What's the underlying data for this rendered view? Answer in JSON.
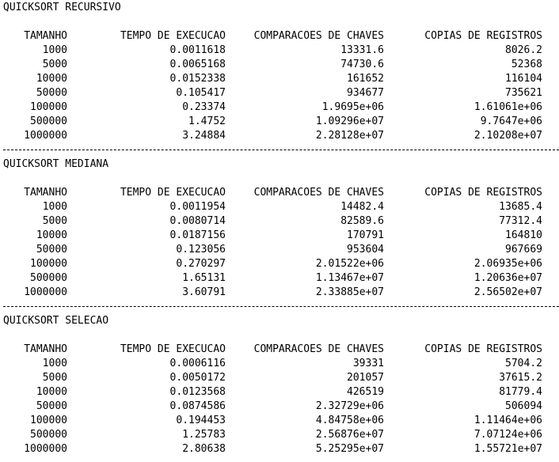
{
  "headers": [
    "TAMANHO",
    "TEMPO DE EXECUCAO",
    "COMPARACOES DE CHAVES",
    "COPIAS DE REGISTROS"
  ],
  "sections": [
    {
      "title": "QUICKSORT RECURSIVO",
      "rows": [
        [
          "1000",
          "0.0011618",
          "13331.6",
          "8026.2"
        ],
        [
          "5000",
          "0.0065168",
          "74730.6",
          "52368"
        ],
        [
          "10000",
          "0.0152338",
          "161652",
          "116104"
        ],
        [
          "50000",
          "0.105417",
          "934677",
          "735621"
        ],
        [
          "100000",
          "0.23374",
          "1.9695e+06",
          "1.61061e+06"
        ],
        [
          "500000",
          "1.4752",
          "1.09296e+07",
          "9.7647e+06"
        ],
        [
          "1000000",
          "3.24884",
          "2.28128e+07",
          "2.10208e+07"
        ]
      ]
    },
    {
      "title": "QUICKSORT MEDIANA",
      "rows": [
        [
          "1000",
          "0.0011954",
          "14482.4",
          "13685.4"
        ],
        [
          "5000",
          "0.0080714",
          "82589.6",
          "77312.4"
        ],
        [
          "10000",
          "0.0187156",
          "170791",
          "164810"
        ],
        [
          "50000",
          "0.123056",
          "953604",
          "967669"
        ],
        [
          "100000",
          "0.270297",
          "2.01522e+06",
          "2.06935e+06"
        ],
        [
          "500000",
          "1.65131",
          "1.13467e+07",
          "1.20636e+07"
        ],
        [
          "1000000",
          "3.60791",
          "2.33885e+07",
          "2.56502e+07"
        ]
      ]
    },
    {
      "title": "QUICKSORT SELECAO",
      "rows": [
        [
          "1000",
          "0.0006116",
          "39331",
          "5704.2"
        ],
        [
          "5000",
          "0.0050172",
          "201057",
          "37615.2"
        ],
        [
          "10000",
          "0.0123568",
          "426519",
          "81779.4"
        ],
        [
          "50000",
          "0.0874586",
          "2.32729e+06",
          "506094"
        ],
        [
          "100000",
          "0.194453",
          "4.84758e+06",
          "1.11464e+06"
        ],
        [
          "500000",
          "1.25783",
          "2.56876e+07",
          "7.07124e+06"
        ],
        [
          "1000000",
          "2.80638",
          "5.25295e+07",
          "1.55721e+07"
        ]
      ]
    }
  ]
}
